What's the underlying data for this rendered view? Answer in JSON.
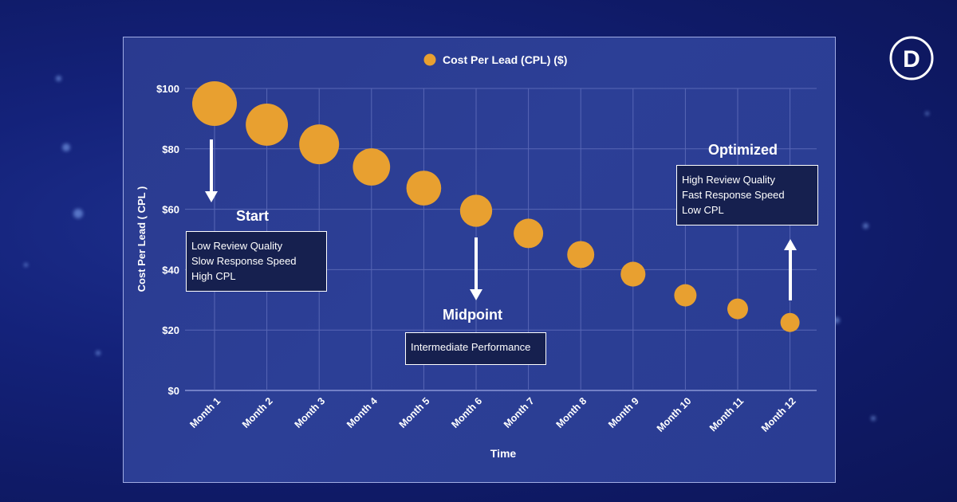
{
  "chart_data": {
    "type": "scatter",
    "legend": {
      "label": "Cost Per Lead (CPL) ($)",
      "color": "#e8a030",
      "placement": "top-center"
    },
    "categories": [
      "Month 1",
      "Month 2",
      "Month 3",
      "Month 4",
      "Month 5",
      "Month 6",
      "Month 7",
      "Month 8",
      "Month 9",
      "Month 10",
      "Month 11",
      "Month 12"
    ],
    "values": [
      95,
      88,
      81.5,
      74,
      67,
      59.5,
      52,
      45,
      38.5,
      31.5,
      27,
      22.5
    ],
    "ylabel": "Cost Per Lead ( CPL )",
    "xlabel": "Time",
    "ylim": [
      0,
      100
    ],
    "yticks": [
      "$0",
      "$20",
      "$40",
      "$60",
      "$80",
      "$100"
    ],
    "ytick_values": [
      0,
      20,
      40,
      60,
      80,
      100
    ],
    "grid": true
  },
  "annotations": {
    "start": {
      "title": "Start",
      "lines": [
        "Low Review Quality",
        "Slow Response Speed",
        "High CPL"
      ]
    },
    "midpoint": {
      "title": "Midpoint",
      "lines": [
        "Intermediate Performance"
      ]
    },
    "optimized": {
      "title": "Optimized",
      "lines": [
        "High Review Quality",
        "Fast Response Speed",
        "Low CPL"
      ]
    }
  },
  "logo": {
    "letter": "D",
    "icon": "brand-logo-icon"
  },
  "colors": {
    "point": "#e8a030",
    "grid": "#5867b5",
    "text": "#ffffff"
  }
}
